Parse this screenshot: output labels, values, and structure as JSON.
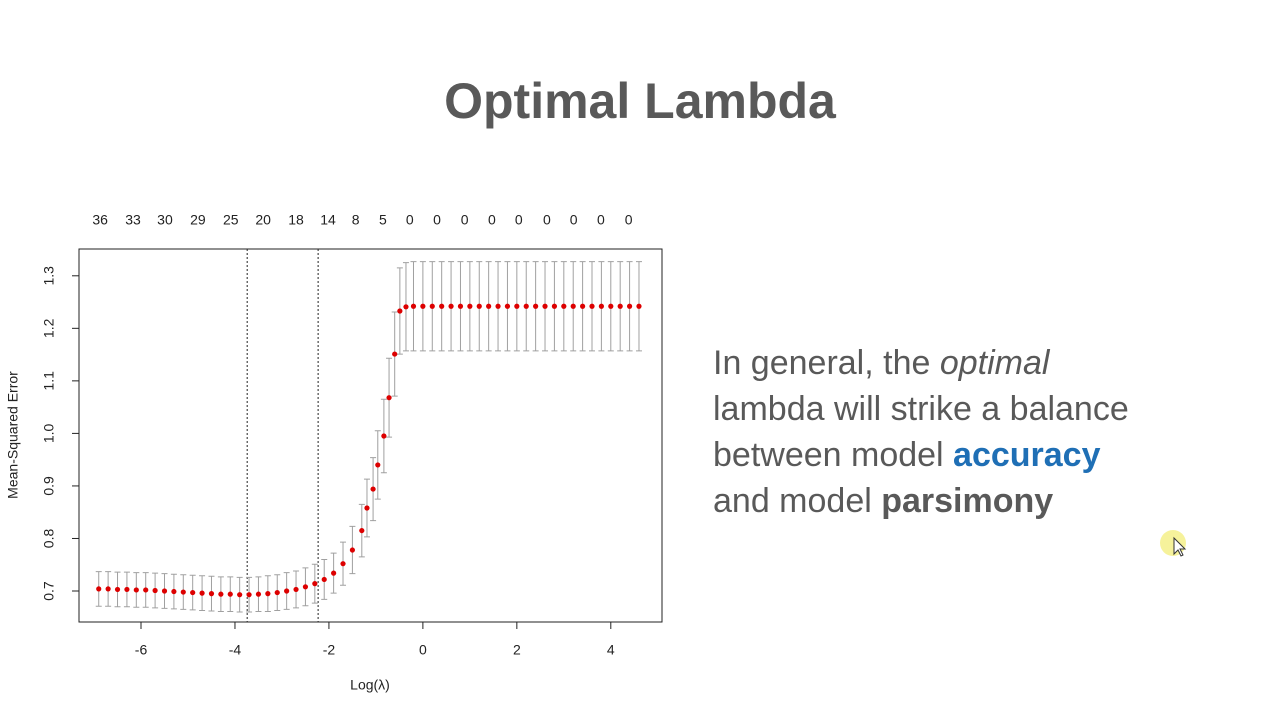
{
  "slide": {
    "title": "Optimal Lambda",
    "body": [
      [
        "In general, the ",
        "optimal"
      ],
      [
        "lambda will strike a balance"
      ],
      [
        "between model ",
        "accuracy"
      ],
      [
        "and model ",
        "parsimony"
      ]
    ]
  },
  "chart_data": {
    "type": "errorbar",
    "xlabel": "Log(λ)",
    "ylabel": "Mean-Squared Error",
    "color": "#dd0000",
    "error_color": "#a0a0a0",
    "x": [
      -6.9,
      -6.7,
      -6.5,
      -6.3,
      -6.1,
      -5.9,
      -5.7,
      -5.5,
      -5.3,
      -5.1,
      -4.9,
      -4.7,
      -4.5,
      -4.3,
      -4.1,
      -3.9,
      -3.7,
      -3.5,
      -3.3,
      -3.1,
      -2.9,
      -2.7,
      -2.5,
      -2.3,
      -2.1,
      -1.9,
      -1.7,
      -1.5,
      -1.3,
      -1.19,
      -1.06,
      -0.96,
      -0.83,
      -0.72,
      -0.6,
      -0.49,
      -0.36,
      -0.2,
      0,
      0.2,
      0.4,
      0.6,
      0.8,
      1,
      1.2,
      1.4,
      1.6,
      1.8,
      2,
      2.2,
      2.4,
      2.6,
      2.8,
      3,
      3.2,
      3.4,
      3.6,
      3.8,
      4,
      4.2,
      4.4,
      4.6
    ],
    "values": [
      0.704,
      0.704,
      0.703,
      0.703,
      0.702,
      0.702,
      0.701,
      0.7,
      0.699,
      0.698,
      0.697,
      0.696,
      0.695,
      0.694,
      0.694,
      0.693,
      0.693,
      0.694,
      0.695,
      0.697,
      0.7,
      0.703,
      0.708,
      0.714,
      0.722,
      0.734,
      0.752,
      0.778,
      0.815,
      0.858,
      0.894,
      0.94,
      0.995,
      1.068,
      1.151,
      1.233,
      1.241,
      1.242,
      1.242,
      1.242,
      1.242,
      1.242,
      1.242,
      1.242,
      1.242,
      1.242,
      1.242,
      1.242,
      1.242,
      1.242,
      1.242,
      1.242,
      1.242,
      1.242,
      1.242,
      1.242,
      1.242,
      1.242,
      1.242,
      1.242,
      1.242,
      1.242
    ],
    "errors": [
      0.033,
      0.033,
      0.033,
      0.033,
      0.033,
      0.033,
      0.033,
      0.033,
      0.033,
      0.033,
      0.033,
      0.033,
      0.033,
      0.033,
      0.033,
      0.033,
      0.033,
      0.033,
      0.034,
      0.034,
      0.035,
      0.035,
      0.036,
      0.037,
      0.038,
      0.038,
      0.041,
      0.045,
      0.05,
      0.055,
      0.06,
      0.065,
      0.07,
      0.075,
      0.08,
      0.082,
      0.084,
      0.085,
      0.085,
      0.085,
      0.085,
      0.085,
      0.085,
      0.085,
      0.085,
      0.085,
      0.085,
      0.085,
      0.085,
      0.085,
      0.085,
      0.085,
      0.085,
      0.085,
      0.085,
      0.085,
      0.085,
      0.085,
      0.085,
      0.085,
      0.085,
      0.085
    ],
    "vlines": [
      -3.74,
      -2.23
    ],
    "xlim": [
      -7.32,
      5.09
    ],
    "ylim": [
      0.641,
      1.351
    ],
    "xticks": [
      -6,
      -4,
      -2,
      0,
      2,
      4
    ],
    "yticks": [
      0.7,
      0.8,
      0.9,
      {
        "value": 1,
        "label": "1.0"
      },
      1.1,
      1.2,
      1.3
    ],
    "top_ticks": [
      {
        "value": -6.87,
        "label": "36"
      },
      {
        "value": -6.17,
        "label": "33"
      },
      {
        "value": -5.49,
        "label": "30"
      },
      {
        "value": -4.79,
        "label": "29"
      },
      {
        "value": -4.09,
        "label": "25"
      },
      {
        "value": -3.4,
        "label": "20"
      },
      {
        "value": -2.7,
        "label": "18"
      },
      {
        "value": -2.02,
        "label": "14"
      },
      {
        "value": -1.43,
        "label": "8"
      },
      {
        "value": -0.85,
        "label": "5"
      },
      {
        "value": -0.28,
        "label": "0"
      },
      {
        "value": 0.3,
        "label": "0"
      },
      {
        "value": 0.89,
        "label": "0"
      },
      {
        "value": 1.47,
        "label": "0"
      },
      {
        "value": 2.04,
        "label": "0"
      },
      {
        "value": 2.64,
        "label": "0"
      },
      {
        "value": 3.21,
        "label": "0"
      },
      {
        "value": 3.79,
        "label": "0"
      },
      {
        "value": 4.38,
        "label": "0"
      }
    ]
  }
}
